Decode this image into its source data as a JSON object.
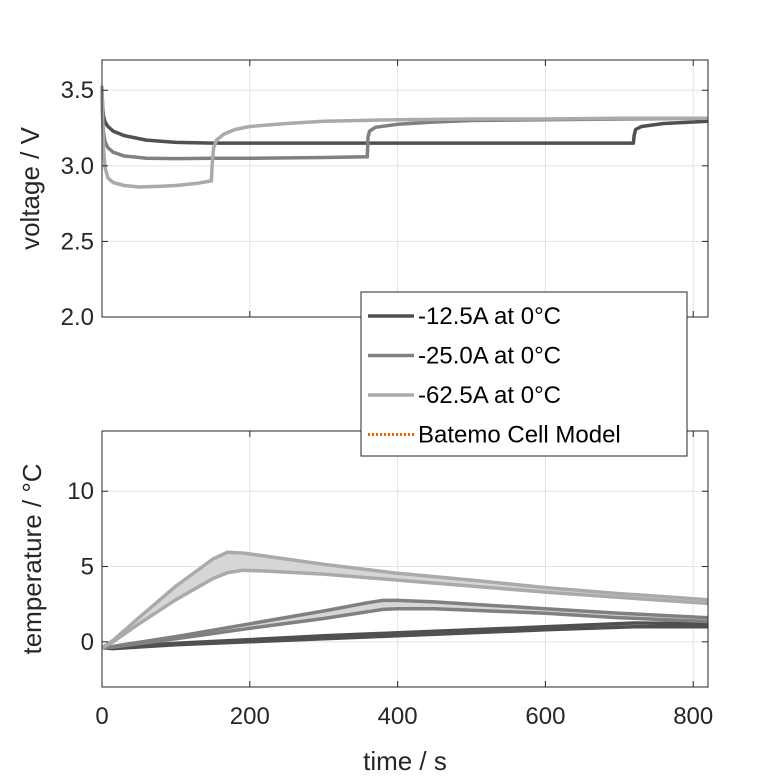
{
  "colors": {
    "series_dark": "#505050",
    "series_mid": "#808080",
    "series_light": "#aaaaaa",
    "band_fill": "#d6d6d6",
    "model": "#e8630a",
    "grid": "#e3e3e3",
    "axis": "#262626"
  },
  "chart_data": [
    {
      "type": "line",
      "title": "",
      "xlabel": "",
      "ylabel": "voltage / V",
      "xlim": [
        0,
        820
      ],
      "ylim": [
        2.0,
        3.7
      ],
      "xticks": [
        0,
        200,
        400,
        600,
        800
      ],
      "yticks": [
        2.0,
        2.5,
        3.0,
        3.5
      ],
      "ytick_labels": [
        "2.0",
        "2.5",
        "3.0",
        "3.5"
      ],
      "grid": true,
      "series": [
        {
          "name": "-12.5A at 0°C",
          "color": "#505050",
          "x": [
            0,
            1,
            2,
            4,
            8,
            15,
            30,
            60,
            100,
            150,
            200,
            300,
            400,
            500,
            600,
            700,
            719,
            720,
            722,
            730,
            760,
            820
          ],
          "y": [
            3.5,
            3.38,
            3.33,
            3.29,
            3.26,
            3.23,
            3.2,
            3.17,
            3.155,
            3.15,
            3.15,
            3.15,
            3.15,
            3.15,
            3.15,
            3.15,
            3.15,
            3.2,
            3.24,
            3.26,
            3.28,
            3.295
          ]
        },
        {
          "name": "-25.0A at 0°C",
          "color": "#808080",
          "x": [
            0,
            1,
            2,
            4,
            8,
            15,
            30,
            60,
            100,
            150,
            200,
            300,
            359,
            360,
            362,
            370,
            400,
            450,
            500,
            600,
            700,
            820
          ],
          "y": [
            3.46,
            3.3,
            3.22,
            3.16,
            3.12,
            3.09,
            3.065,
            3.05,
            3.048,
            3.05,
            3.05,
            3.055,
            3.06,
            3.19,
            3.23,
            3.255,
            3.275,
            3.29,
            3.3,
            3.305,
            3.31,
            3.315
          ]
        },
        {
          "name": "-62.5A at 0°C",
          "color": "#aaaaaa",
          "x": [
            0,
            1,
            2,
            4,
            8,
            15,
            30,
            50,
            80,
            100,
            130,
            148,
            149,
            151,
            155,
            165,
            180,
            200,
            250,
            300,
            400,
            500,
            600,
            700,
            820
          ],
          "y": [
            3.53,
            3.3,
            3.12,
            2.99,
            2.92,
            2.89,
            2.87,
            2.86,
            2.865,
            2.87,
            2.885,
            2.9,
            3.0,
            3.12,
            3.17,
            3.21,
            3.24,
            3.26,
            3.28,
            3.295,
            3.305,
            3.31,
            3.31,
            3.315,
            3.315
          ]
        }
      ]
    },
    {
      "type": "line",
      "title": "",
      "xlabel": "time / s",
      "ylabel": "temperature / °C",
      "xlim": [
        0,
        820
      ],
      "ylim": [
        -3,
        14
      ],
      "xticks": [
        0,
        200,
        400,
        600,
        800
      ],
      "yticks": [
        0,
        5,
        10
      ],
      "ytick_labels": [
        "0",
        "5",
        "10"
      ],
      "grid": true,
      "series": [
        {
          "name": "-12.5A at 0°C",
          "color": "#505050",
          "x": [
            0,
            15,
            100,
            200,
            300,
            400,
            500,
            600,
            720,
            820
          ],
          "upper": [
            -0.4,
            -0.35,
            -0.1,
            0.15,
            0.4,
            0.6,
            0.8,
            1.0,
            1.25,
            1.2
          ],
          "lower": [
            -0.4,
            -0.45,
            -0.2,
            0.0,
            0.2,
            0.4,
            0.6,
            0.8,
            1.0,
            1.0
          ]
        },
        {
          "name": "-25.0A at 0°C",
          "color": "#808080",
          "x": [
            0,
            15,
            100,
            200,
            300,
            360,
            380,
            400,
            450,
            500,
            600,
            700,
            820
          ],
          "upper": [
            -0.4,
            -0.3,
            0.35,
            1.2,
            2.05,
            2.6,
            2.75,
            2.75,
            2.65,
            2.5,
            2.2,
            1.9,
            1.6
          ],
          "lower": [
            -0.4,
            -0.35,
            0.2,
            0.9,
            1.55,
            2.0,
            2.15,
            2.2,
            2.2,
            2.1,
            1.9,
            1.6,
            1.35
          ]
        },
        {
          "name": "-62.5A at 0°C",
          "color": "#aaaaaa",
          "x": [
            0,
            15,
            50,
            100,
            150,
            170,
            190,
            220,
            300,
            400,
            500,
            600,
            700,
            820
          ],
          "upper": [
            -0.4,
            0.1,
            1.6,
            3.7,
            5.5,
            5.95,
            5.9,
            5.7,
            5.15,
            4.55,
            4.1,
            3.6,
            3.2,
            2.8
          ],
          "lower": [
            -0.4,
            0.0,
            1.2,
            2.8,
            4.2,
            4.6,
            4.75,
            4.7,
            4.5,
            4.1,
            3.7,
            3.3,
            2.95,
            2.55
          ]
        }
      ]
    }
  ],
  "legend": {
    "placement": "center-right",
    "entries": [
      {
        "label": "-12.5A at 0°C",
        "color": "#505050",
        "style": "solid"
      },
      {
        "label": "-25.0A at 0°C",
        "color": "#808080",
        "style": "solid"
      },
      {
        "label": "-62.5A at 0°C",
        "color": "#aaaaaa",
        "style": "solid"
      },
      {
        "label": "Batemo Cell Model",
        "color": "#e8630a",
        "style": "dotted"
      }
    ]
  }
}
